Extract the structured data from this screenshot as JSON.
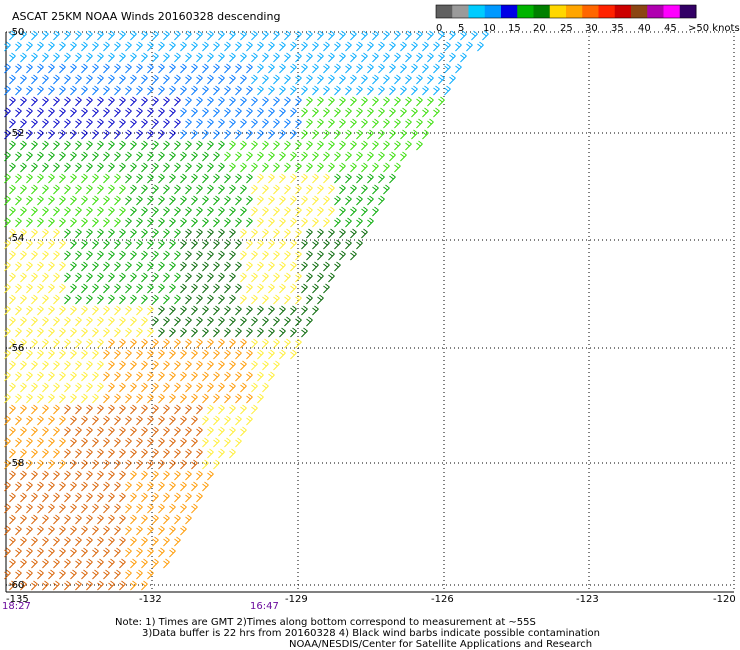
{
  "title": "ASCAT 25KM NOAA Winds 20160328 descending",
  "legend": {
    "labels": [
      "0",
      "5",
      "10",
      "15",
      "20",
      "25",
      "30",
      "35",
      "40",
      "45",
      ">50 knots"
    ],
    "colors": [
      "#606060",
      "#9a9a9a",
      "#00ccff",
      "#0099ff",
      "#0000e6",
      "#00b400",
      "#008000",
      "#ffd700",
      "#ffa500",
      "#ff6600",
      "#ff2200",
      "#cc0000",
      "#8b4513",
      "#b000b0",
      "#ff00ff",
      "#330066"
    ]
  },
  "axes": {
    "lat_labels": [
      "-50",
      "-52",
      "-54",
      "-56",
      "-58",
      "-60"
    ],
    "lon_labels": [
      "-135",
      "-132",
      "-129",
      "-126",
      "-123",
      "-120"
    ],
    "time_labels": [
      "18:27",
      "16:47"
    ]
  },
  "notes": [
    "Note: 1) Times are GMT 2)Times along bottom correspond to measurement at ~55S",
    "3)Data buffer is 22 hrs from 20160328 4) Black wind barbs indicate possible contamination",
    "NOAA/NESDIS/Center for Satellite Applications and Research"
  ],
  "speed_colors": {
    "blue_dark": "#0000c8",
    "blue_mid": "#0077ff",
    "blue_light": "#00aaff",
    "green_light": "#33dd00",
    "green": "#00a800",
    "green_dark": "#006400",
    "yellow": "#ffee33",
    "orange": "#ff9900",
    "dark_orange": "#d86000"
  }
}
